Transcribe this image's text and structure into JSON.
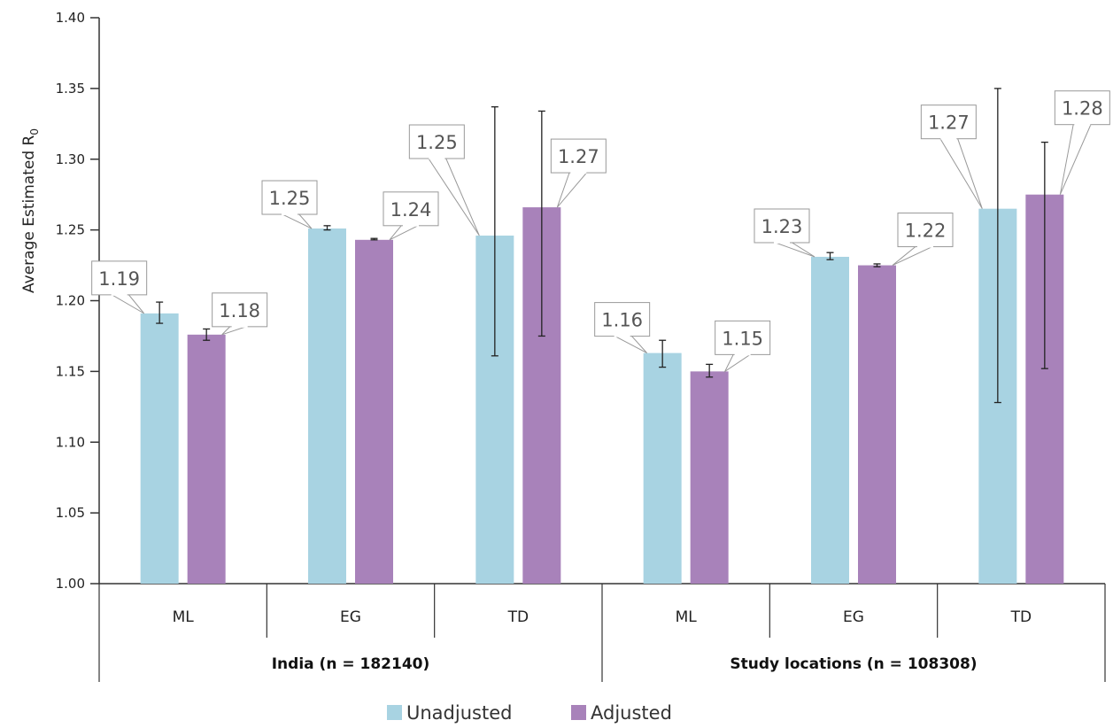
{
  "chart_data": {
    "type": "bar",
    "ylabel": "Average Estimated R",
    "ylabel_subscript": "0",
    "ylim": [
      1.0,
      1.4
    ],
    "yticks": [
      "1.00",
      "1.05",
      "1.10",
      "1.15",
      "1.20",
      "1.25",
      "1.30",
      "1.35",
      "1.40"
    ],
    "grid": false,
    "legend_position": "bottom-center",
    "colors": {
      "Unadjusted": "#a8d3e2",
      "Adjusted": "#a882ba"
    },
    "groups": [
      {
        "label": "India (n = 182140)",
        "categories": [
          "ML",
          "EG",
          "TD"
        ]
      },
      {
        "label": "Study locations (n = 108308)",
        "categories": [
          "ML",
          "EG",
          "TD"
        ]
      }
    ],
    "series": [
      {
        "name": "Unadjusted",
        "values": [
          1.191,
          1.251,
          1.246,
          1.163,
          1.231,
          1.265
        ],
        "labels": [
          "1.19",
          "1.25",
          "1.25",
          "1.16",
          "1.23",
          "1.27"
        ],
        "error_low": [
          1.184,
          1.25,
          1.161,
          1.153,
          1.229,
          1.128
        ],
        "error_high": [
          1.199,
          1.253,
          1.337,
          1.172,
          1.234,
          1.35
        ]
      },
      {
        "name": "Adjusted",
        "values": [
          1.176,
          1.243,
          1.266,
          1.15,
          1.225,
          1.275
        ],
        "labels": [
          "1.18",
          "1.24",
          "1.27",
          "1.15",
          "1.22",
          "1.28"
        ],
        "error_low": [
          1.172,
          1.243,
          1.175,
          1.146,
          1.224,
          1.152
        ],
        "error_high": [
          1.18,
          1.244,
          1.334,
          1.155,
          1.226,
          1.312
        ]
      }
    ]
  }
}
